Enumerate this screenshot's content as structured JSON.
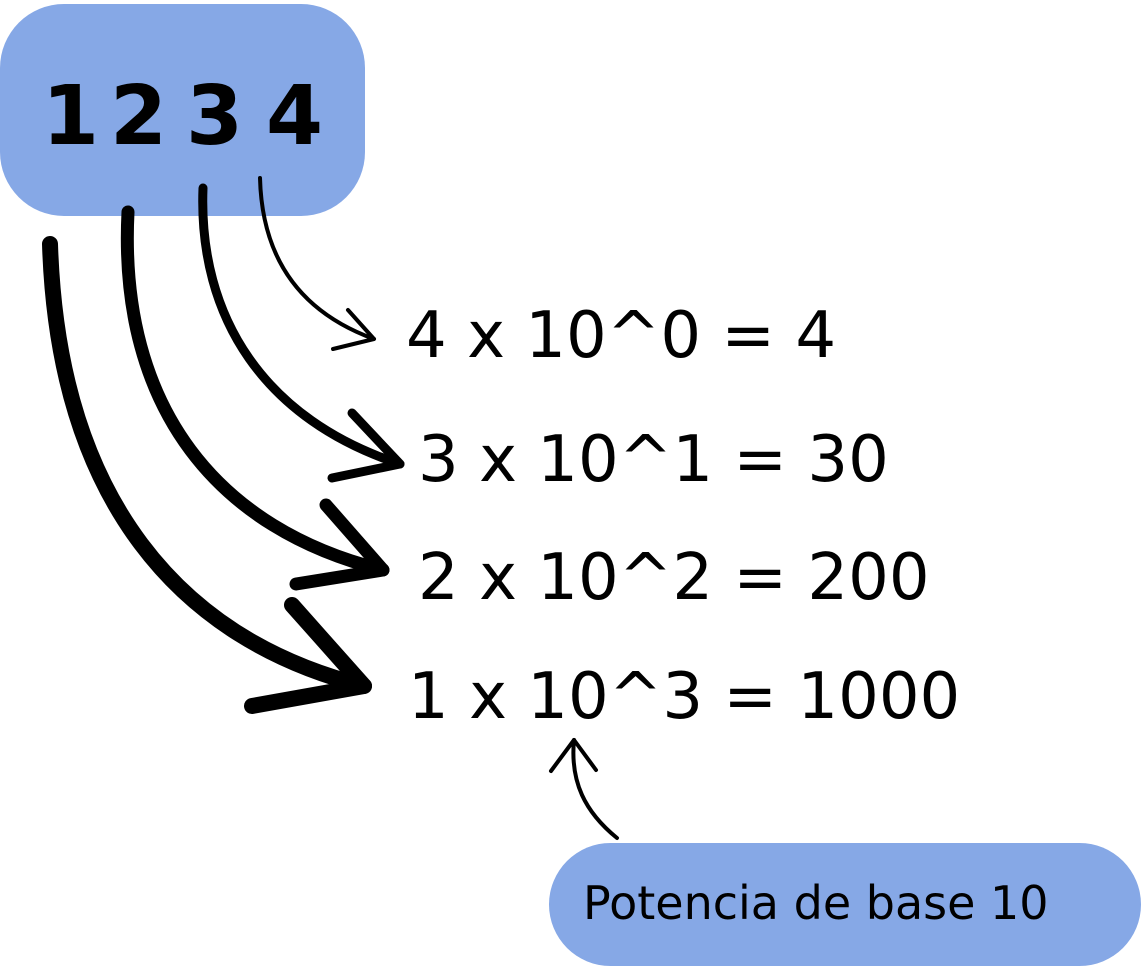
{
  "number": {
    "digits": [
      "1",
      "2",
      "3",
      "4"
    ]
  },
  "equations": [
    "4 x 10^0 = 4",
    "3 x 10^1 = 30",
    "2 x 10^2 = 200",
    "1 x 10^3 = 1000"
  ],
  "annotation": {
    "label": "Potencia de base 10"
  },
  "colors": {
    "box_fill": "#86a8e6",
    "ink": "#000000"
  }
}
